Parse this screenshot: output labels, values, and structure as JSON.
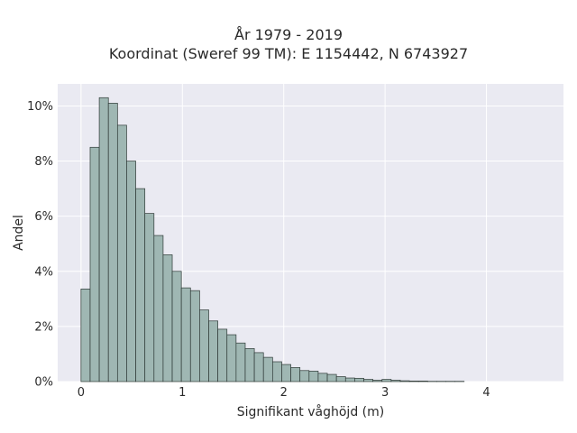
{
  "chart_data": {
    "type": "bar",
    "title": "År 1979 - 2019",
    "subtitle": "Koordinat (Sweref 99 TM): E 1154442, N 6743927",
    "xlabel": "Signifikant våghöjd (m)",
    "ylabel": "Andel",
    "xlim": [
      -0.23,
      4.76
    ],
    "ylim": [
      0,
      0.108
    ],
    "x_ticks": [
      0,
      1,
      2,
      3,
      4
    ],
    "x_tick_labels": [
      "0",
      "1",
      "2",
      "3",
      "4"
    ],
    "y_ticks": [
      0,
      0.02,
      0.04,
      0.06,
      0.08,
      0.1
    ],
    "y_tick_labels": [
      "0%",
      "2%",
      "4%",
      "6%",
      "8%",
      "10%"
    ],
    "grid": true,
    "bin_width": 0.09,
    "bin_starts": [
      0.0,
      0.09,
      0.18,
      0.27,
      0.36,
      0.45,
      0.54,
      0.63,
      0.72,
      0.81,
      0.9,
      0.99,
      1.08,
      1.17,
      1.26,
      1.35,
      1.44,
      1.53,
      1.62,
      1.71,
      1.8,
      1.89,
      1.98,
      2.07,
      2.16,
      2.25,
      2.34,
      2.43,
      2.52,
      2.61,
      2.7,
      2.79,
      2.88,
      2.97,
      3.06,
      3.15,
      3.24,
      3.33,
      3.42,
      3.51,
      3.6,
      3.69
    ],
    "values": [
      0.0336,
      0.085,
      0.103,
      0.101,
      0.093,
      0.08,
      0.07,
      0.061,
      0.053,
      0.046,
      0.04,
      0.034,
      0.033,
      0.026,
      0.022,
      0.019,
      0.017,
      0.014,
      0.012,
      0.0105,
      0.0088,
      0.0072,
      0.0062,
      0.0051,
      0.004,
      0.0038,
      0.003,
      0.0026,
      0.0018,
      0.0013,
      0.0012,
      0.0008,
      0.0005,
      0.0008,
      0.0005,
      0.0003,
      0.0002,
      0.0002,
      0.0001,
      0.0001,
      0.0001,
      0.0001
    ],
    "bar_color": "#9fb7b3",
    "bar_edge_color": "#2f3a37",
    "plot_bg": "#eaeaf2",
    "grid_color": "#ffffff"
  }
}
